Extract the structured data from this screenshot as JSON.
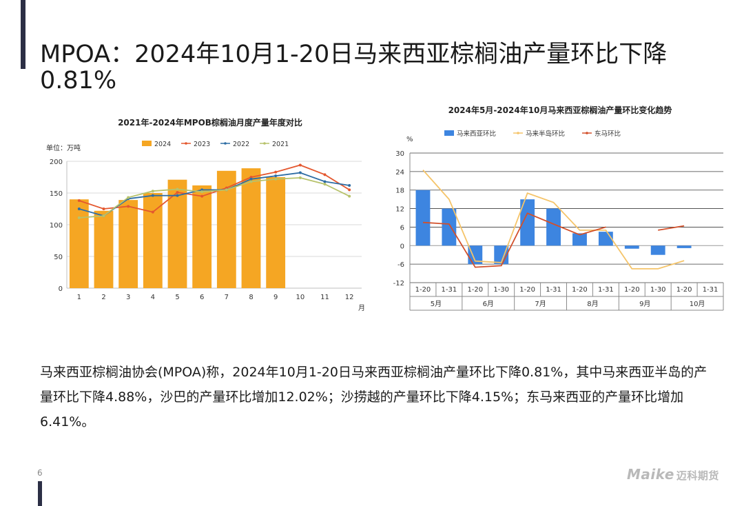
{
  "slide": {
    "title": "MPOA：2024年10月1-20日马来西亚棕榈油产量环比下降0.81%",
    "body": "马来西亚棕榈油协会(MPOA)称，2024年10月1-20日马来西亚棕榈油产量环比下降0.81%，其中马来西亚半岛的产量环比下降4.88%，沙巴的产量环比增加12.02%；沙捞越的产量环比下降4.15%；东马来西亚的产量环比增加6.41%。",
    "page_number": "6",
    "logo_text": "Maike",
    "logo_cn": "迈科期货"
  },
  "chart_data": [
    {
      "type": "bar",
      "title": "2021年-2024年MPOB棕榈油月度产量年度对比",
      "unit_label": "单位：万吨",
      "xlabel": "月",
      "categories": [
        "1",
        "2",
        "3",
        "4",
        "5",
        "6",
        "7",
        "8",
        "9",
        "10",
        "11",
        "12"
      ],
      "ylim": [
        0,
        200
      ],
      "yticks": [
        0,
        50,
        100,
        150,
        200
      ],
      "grid": true,
      "legend_position": "top",
      "series": [
        {
          "name": "2024",
          "kind": "bar",
          "color": "#f5a623",
          "values": [
            140,
            122,
            139,
            150,
            171,
            162,
            185,
            189,
            175,
            null,
            null,
            null
          ]
        },
        {
          "name": "2023",
          "kind": "line",
          "color": "#e4572e",
          "values": [
            138,
            125,
            129,
            120,
            151,
            145,
            158,
            175,
            183,
            194,
            179,
            155
          ]
        },
        {
          "name": "2022",
          "kind": "line",
          "color": "#2e6da4",
          "values": [
            125,
            114,
            141,
            146,
            146,
            155,
            155,
            172,
            177,
            182,
            168,
            162
          ]
        },
        {
          "name": "2021",
          "kind": "line",
          "color": "#b7c26b",
          "values": [
            111,
            114,
            143,
            153,
            156,
            152,
            155,
            168,
            172,
            174,
            164,
            145
          ]
        }
      ]
    },
    {
      "type": "bar",
      "title": "2024年5月-2024年10月马来西亚棕榈油产量环比变化趋势",
      "ylabel": "%",
      "ylim": [
        -12,
        30
      ],
      "yticks": [
        -12,
        -6,
        0,
        6,
        12,
        18,
        24,
        30
      ],
      "grid": true,
      "legend_position": "top",
      "categories": [
        "1-20",
        "1-31",
        "1-20",
        "1-30",
        "1-20",
        "1-31",
        "1-20",
        "1-31",
        "1-20",
        "1-30",
        "1-20",
        "1-31"
      ],
      "groups": [
        "5月",
        "6月",
        "7月",
        "8月",
        "9月",
        "10月"
      ],
      "series": [
        {
          "name": "马来西亚环比",
          "kind": "bar",
          "color": "#3d85e0",
          "values": [
            18,
            12,
            -6,
            -6,
            15,
            12,
            4,
            4.5,
            -1,
            -3,
            -0.81,
            null
          ]
        },
        {
          "name": "马来半岛环比",
          "kind": "line",
          "color": "#f5c469",
          "values": [
            24.5,
            15,
            -5,
            -5.5,
            17,
            14,
            5,
            5,
            -7.5,
            -7.5,
            -4.88,
            null
          ]
        },
        {
          "name": "东马环比",
          "kind": "line",
          "color": "#d2502b",
          "values": [
            7.5,
            7,
            -7,
            -6.5,
            10.5,
            7,
            3.5,
            6,
            null,
            5,
            6.41,
            null
          ]
        }
      ]
    }
  ]
}
